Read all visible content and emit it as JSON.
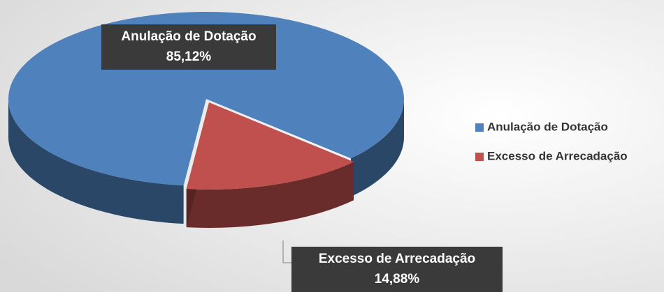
{
  "chart_data": {
    "type": "pie",
    "categories": [
      "Anulação de Dotação",
      "Excesso de Arrecadação"
    ],
    "values": [
      85.12,
      14.88
    ],
    "value_labels": [
      "85,12%",
      "14,88%"
    ],
    "colors": [
      "#4f81bd",
      "#c0504d"
    ],
    "legend": "right"
  }
}
